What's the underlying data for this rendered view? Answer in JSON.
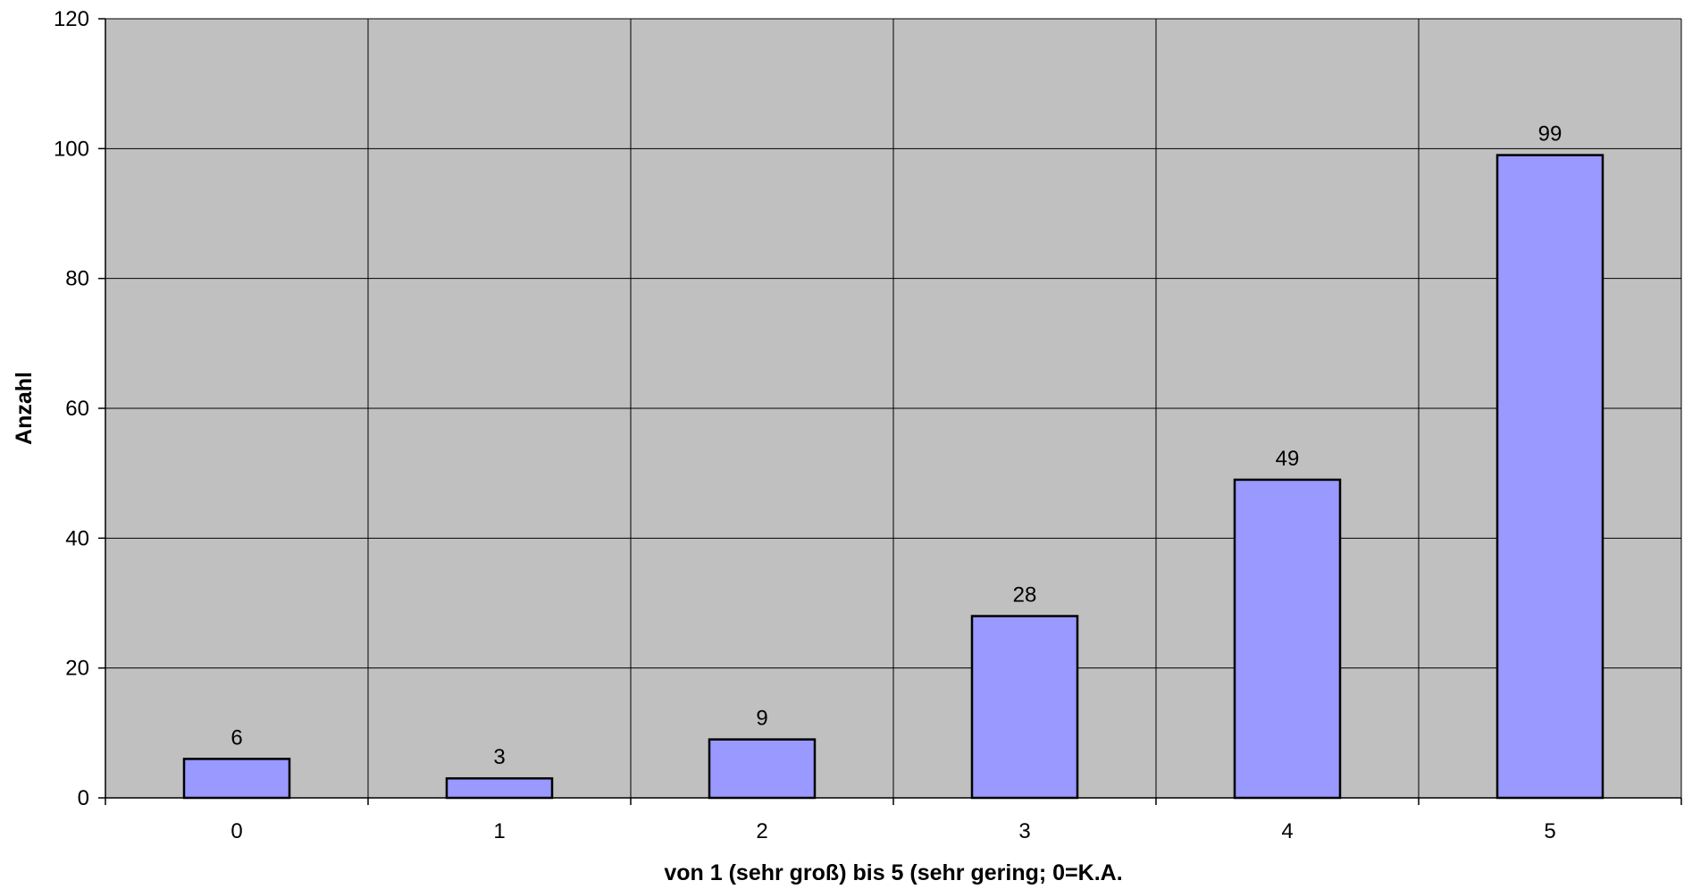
{
  "chart_data": {
    "type": "bar",
    "categories": [
      "0",
      "1",
      "2",
      "3",
      "4",
      "5"
    ],
    "values": [
      6,
      3,
      9,
      28,
      49,
      99
    ],
    "data_labels": [
      "6",
      "3",
      "9",
      "28",
      "49",
      "99"
    ],
    "title": "",
    "xlabel": "von 1 (sehr groß) bis 5 (sehr gering; 0=K.A.",
    "ylabel": "Anzahl",
    "ylim": [
      0,
      120
    ],
    "yticks": [
      "0",
      "20",
      "40",
      "60",
      "80",
      "100",
      "120"
    ],
    "grid": true,
    "legend": "none"
  },
  "colors": {
    "plot_background": "#c0c0c0",
    "bar_fill": "#9999ff",
    "bar_stroke": "#000000",
    "grid": "#000000"
  }
}
